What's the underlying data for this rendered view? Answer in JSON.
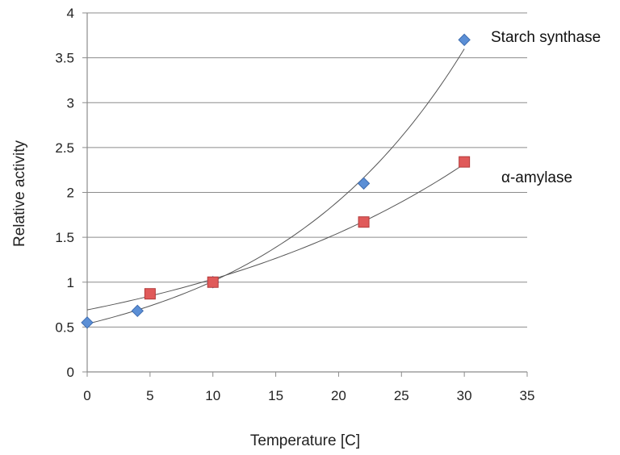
{
  "chart_data": {
    "type": "scatter",
    "xlabel": "Temperature [C]",
    "ylabel": "Relative activity",
    "xlim": [
      0,
      35
    ],
    "ylim": [
      0,
      4
    ],
    "xticks": [
      "0",
      "5",
      "10",
      "15",
      "20",
      "25",
      "30",
      "35"
    ],
    "yticks": [
      "0",
      "0.5",
      "1",
      "1.5",
      "2",
      "2.5",
      "3",
      "3.5",
      "4"
    ],
    "grid": "horizontal",
    "series": [
      {
        "name": "Starch synthase",
        "marker": "diamond",
        "color": "#5b8fd6",
        "trendline": "exponential",
        "x": [
          0,
          4,
          10,
          22,
          30
        ],
        "y": [
          0.55,
          0.68,
          1.0,
          2.1,
          3.7
        ]
      },
      {
        "name": "α-amylase",
        "marker": "square",
        "color": "#e05a5a",
        "trendline": "exponential",
        "x": [
          5,
          10,
          22,
          30
        ],
        "y": [
          0.87,
          1.0,
          1.67,
          2.34
        ]
      }
    ]
  }
}
